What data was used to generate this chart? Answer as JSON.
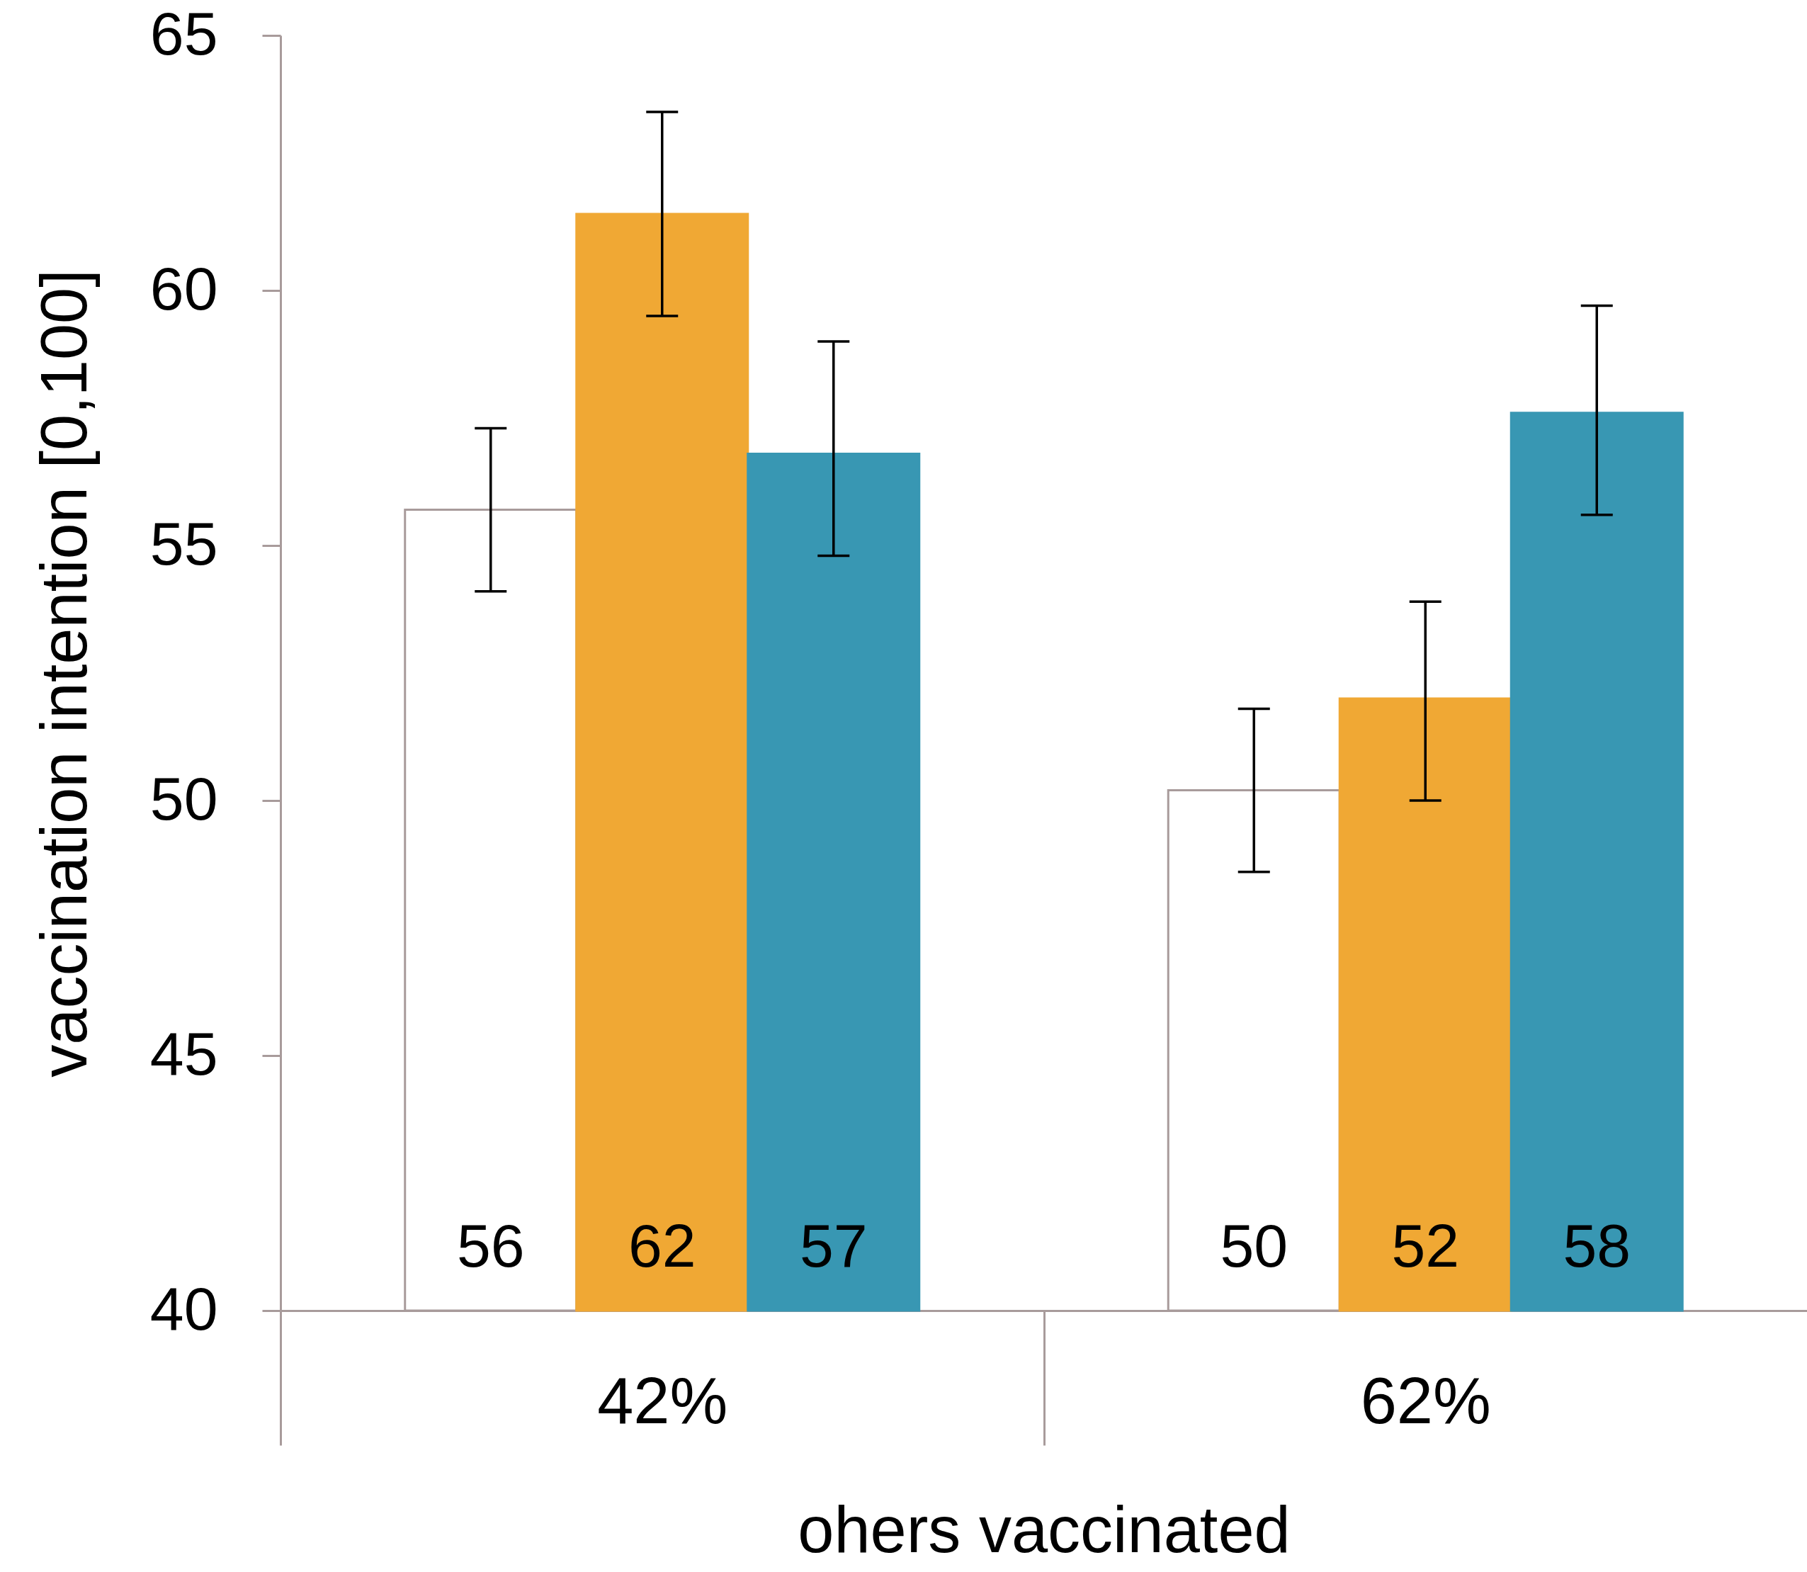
{
  "chart_data": {
    "type": "bar",
    "xlabel": "ohers vaccinated",
    "ylabel": "vaccination intention [0,100]",
    "categories": [
      "42%",
      "62%"
    ],
    "series": [
      {
        "color": "#ffffff",
        "values": [
          55.7,
          50.2
        ],
        "errors": [
          [
            54.1,
            57.3
          ],
          [
            48.6,
            51.8
          ]
        ],
        "value_labels": [
          "56",
          "50"
        ]
      },
      {
        "color": "#f0a834",
        "values": [
          61.5,
          52.0
        ],
        "errors": [
          [
            59.5,
            63.5
          ],
          [
            50.0,
            53.9
          ]
        ],
        "value_labels": [
          "62",
          "52"
        ]
      },
      {
        "color": "#3897b3",
        "values": [
          56.8,
          57.6
        ],
        "errors": [
          [
            54.8,
            59.0
          ],
          [
            55.6,
            59.7
          ]
        ],
        "value_labels": [
          "57",
          "58"
        ]
      }
    ],
    "ylim": [
      40,
      65
    ],
    "yticks": [
      40,
      45,
      50,
      55,
      60,
      65
    ],
    "grid": false,
    "legend": false
  }
}
